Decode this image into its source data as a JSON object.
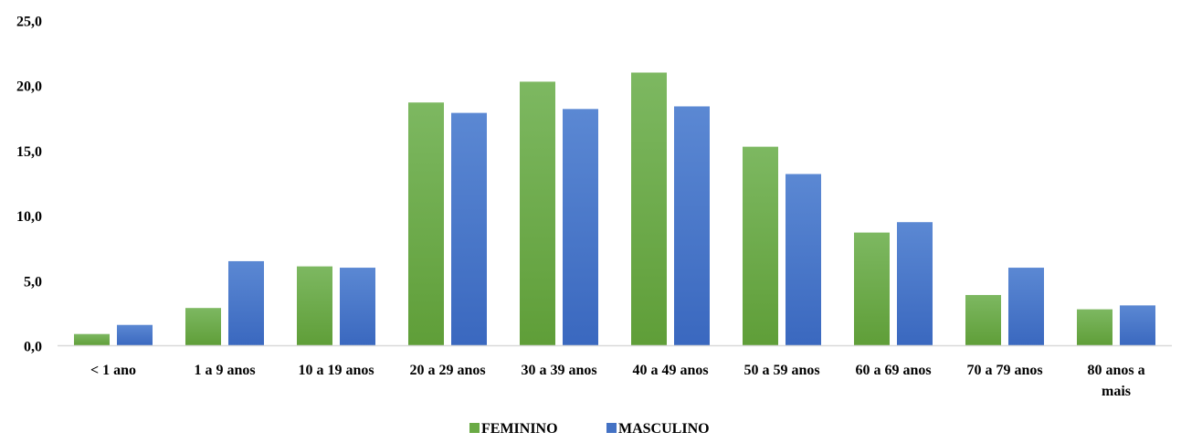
{
  "chart_data": {
    "type": "bar",
    "title": "",
    "xlabel": "",
    "ylabel": "",
    "ylim": [
      0,
      25
    ],
    "yticks": [
      "0,0",
      "5,0",
      "10,0",
      "15,0",
      "20,0",
      "25,0"
    ],
    "ytick_values": [
      0,
      5,
      10,
      15,
      20,
      25
    ],
    "grid": false,
    "legend_position": "bottom",
    "categories": [
      [
        "< 1 ano"
      ],
      [
        "1 a 9 anos"
      ],
      [
        "10 a 19 anos"
      ],
      [
        "20 a 29 anos"
      ],
      [
        "30 a 39 anos"
      ],
      [
        "40 a 49 anos"
      ],
      [
        "50 a 59 anos"
      ],
      [
        "60 a 69 anos"
      ],
      [
        "70 a 79 anos"
      ],
      [
        "80 anos a",
        "mais"
      ]
    ],
    "series": [
      {
        "name": "FEMININO",
        "color_top": "#7db861",
        "color_bottom": "#5f9e38",
        "legend_color": "#6aaa45",
        "values": [
          0.9,
          2.9,
          6.1,
          18.7,
          20.3,
          21.0,
          15.3,
          8.7,
          3.9,
          2.8
        ]
      },
      {
        "name": "MASCULINO",
        "color_top": "#5b88d3",
        "color_bottom": "#3a68bf",
        "legend_color": "#4472c4",
        "values": [
          1.6,
          6.5,
          6.0,
          17.9,
          18.2,
          18.4,
          13.2,
          9.5,
          6.0,
          3.1
        ]
      }
    ]
  }
}
